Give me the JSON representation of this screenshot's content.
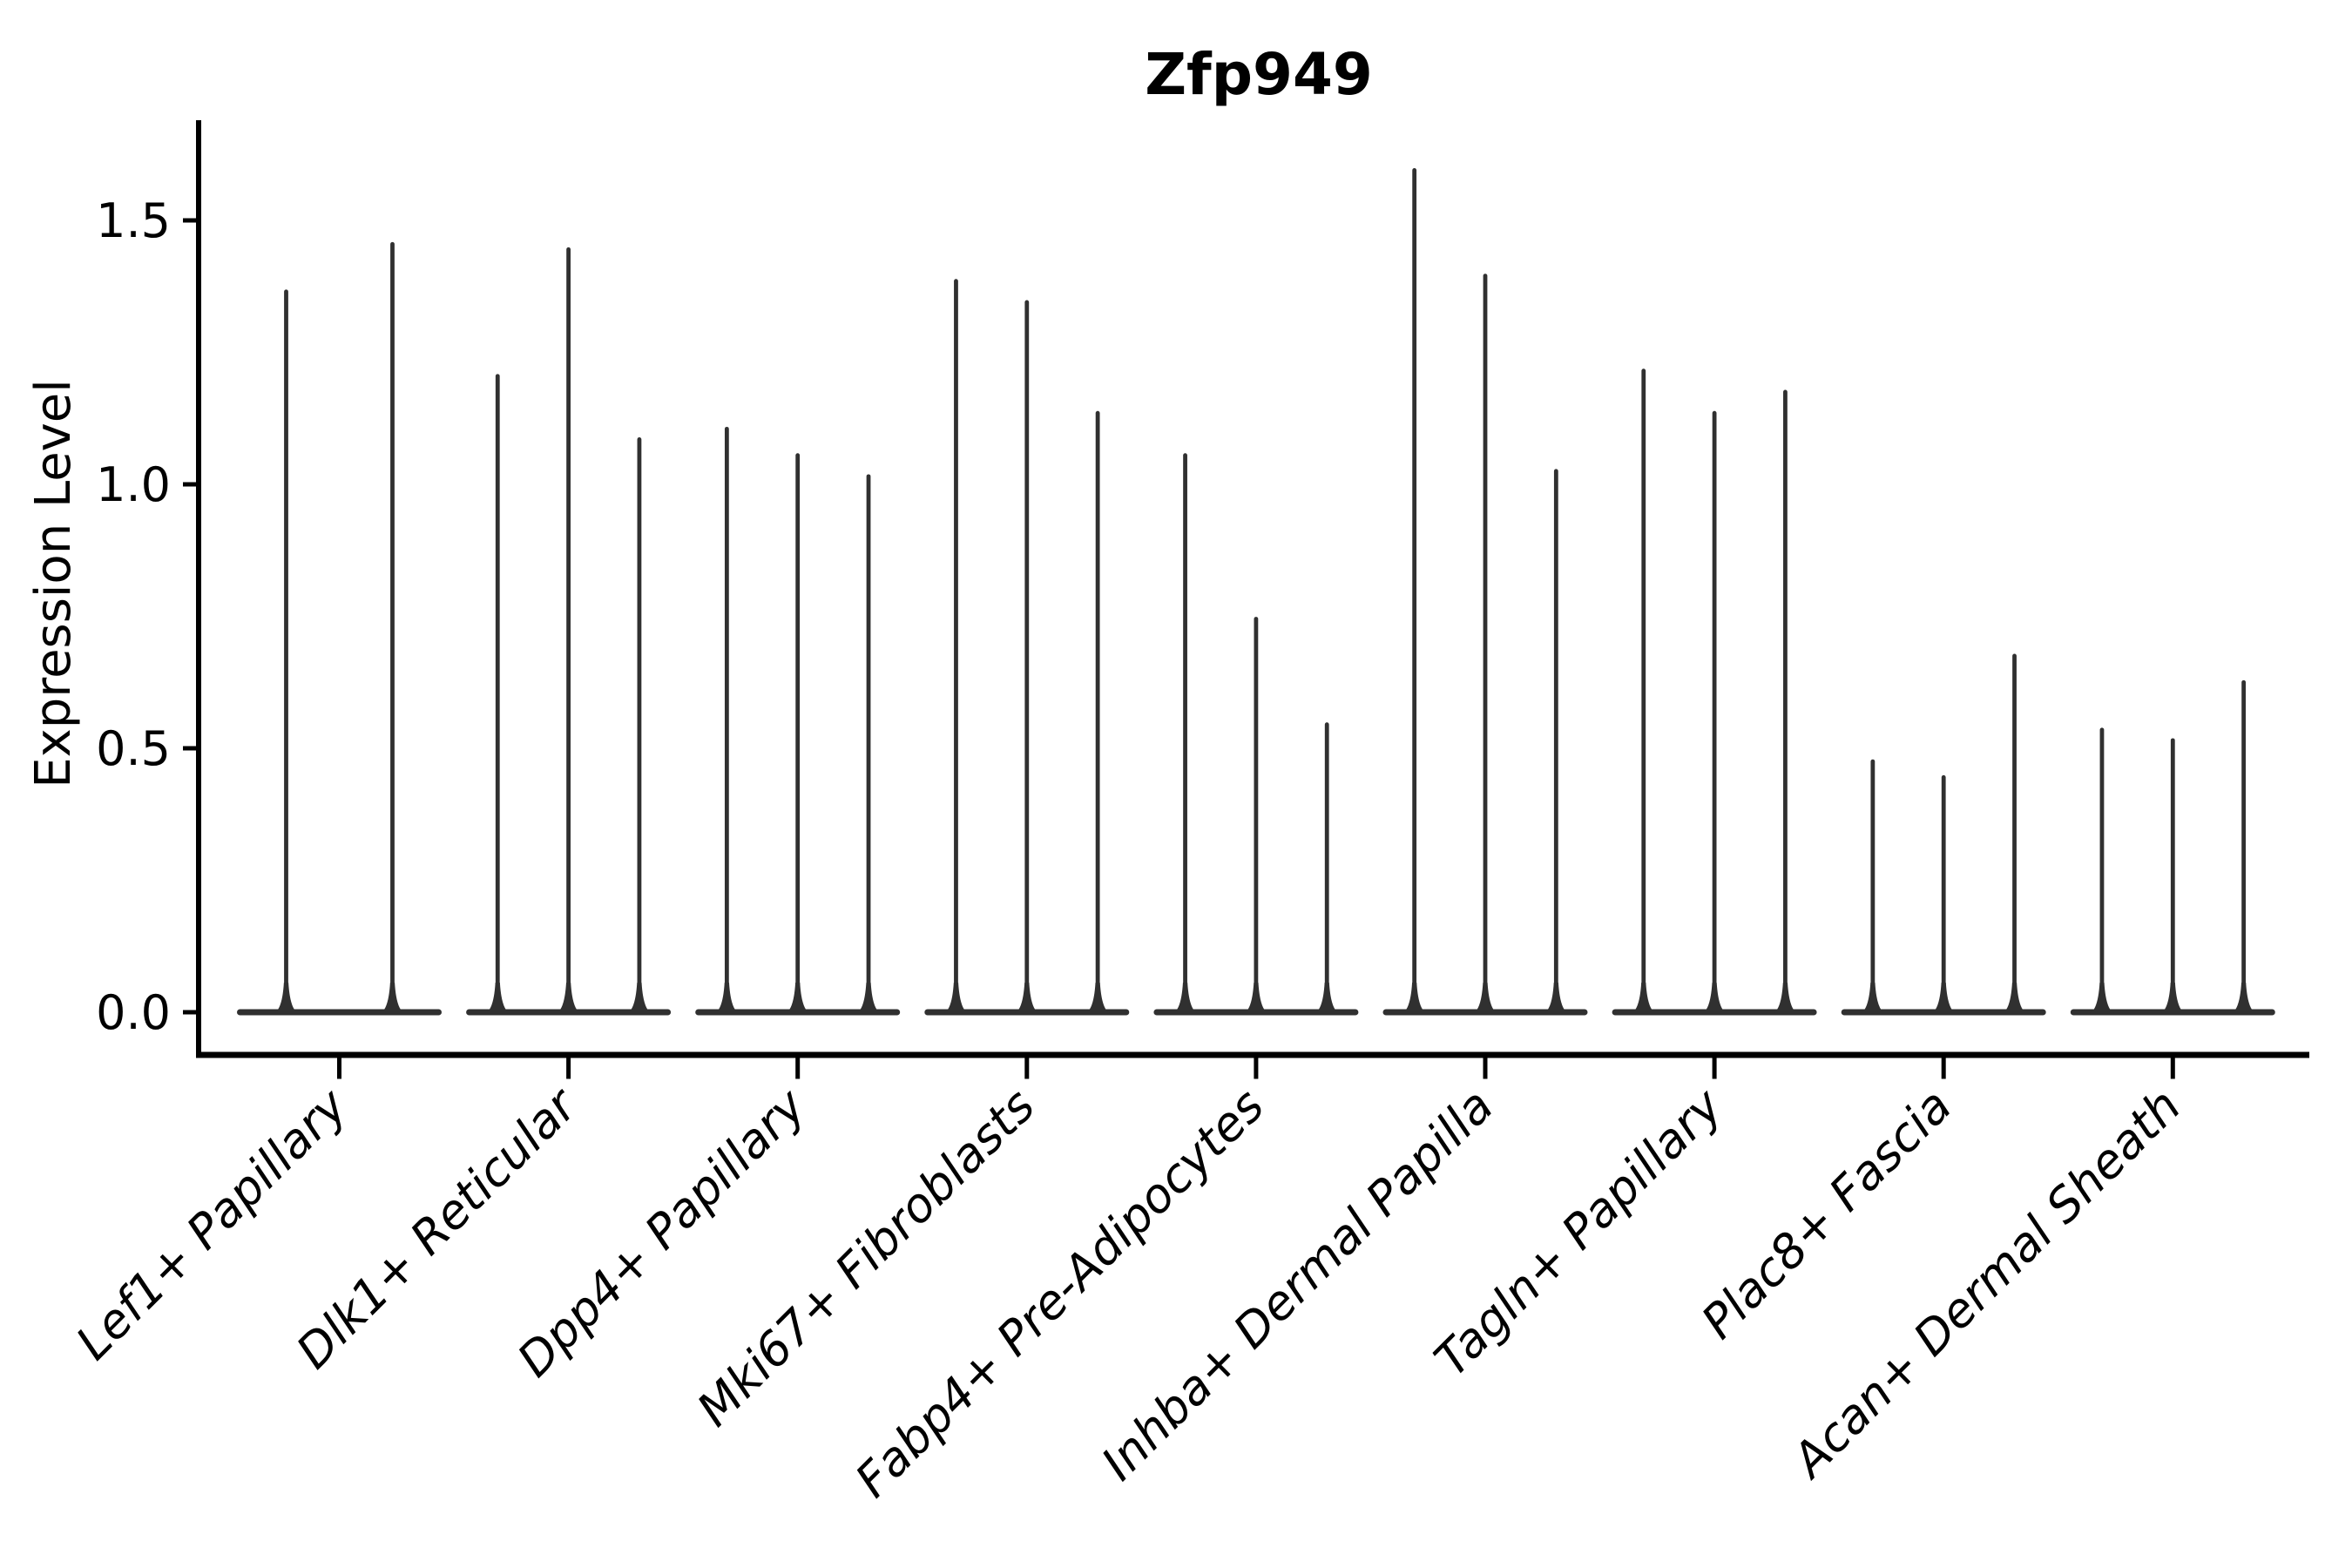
{
  "figure": {
    "title": "Zfp949",
    "background_color": "#ffffff"
  },
  "chart_data": {
    "type": "violin",
    "title": "Zfp949",
    "xlabel": "",
    "ylabel": "Expression Level",
    "ylim": [
      -0.08,
      1.69
    ],
    "grid": false,
    "legend_position": "none",
    "colors": {
      "violin_fill": "#303030",
      "spine_color": "#000000",
      "text_color": "#000000"
    },
    "yticks": [
      {
        "value": 0.0,
        "label": "0.0"
      },
      {
        "value": 0.5,
        "label": "0.5"
      },
      {
        "value": 1.0,
        "label": "1.0"
      },
      {
        "value": 1.5,
        "label": "1.5"
      }
    ],
    "baseline_value": 0.0,
    "description": "Single-cell expression violin plot; each category shows thin spike violins with dense mass at 0 rising to the listed maximum expression values.",
    "categories": [
      {
        "label": "Lef1+ Papillary",
        "spike_maxima": [
          1.37,
          1.46
        ]
      },
      {
        "label": "Dlk1+ Reticular",
        "spike_maxima": [
          1.21,
          1.45,
          1.09
        ]
      },
      {
        "label": "Dpp4+ Papillary",
        "spike_maxima": [
          1.11,
          1.06,
          1.02
        ]
      },
      {
        "label": "Mki67+ Fibroblasts",
        "spike_maxima": [
          1.39,
          1.35,
          1.14
        ]
      },
      {
        "label": "Fabp4+ Pre-Adipocytes",
        "spike_maxima": [
          1.06,
          0.75,
          0.55
        ]
      },
      {
        "label": "Inhba+ Dermal Papilla",
        "spike_maxima": [
          1.6,
          1.4,
          1.03
        ]
      },
      {
        "label": "Tagln+ Papillary",
        "spike_maxima": [
          1.22,
          1.14,
          1.18
        ]
      },
      {
        "label": "Plac8+ Fascia",
        "spike_maxima": [
          0.48,
          0.45,
          0.68
        ]
      },
      {
        "label": "Acan+ Dermal Sheath",
        "spike_maxima": [
          0.54,
          0.52,
          0.63
        ]
      }
    ]
  }
}
